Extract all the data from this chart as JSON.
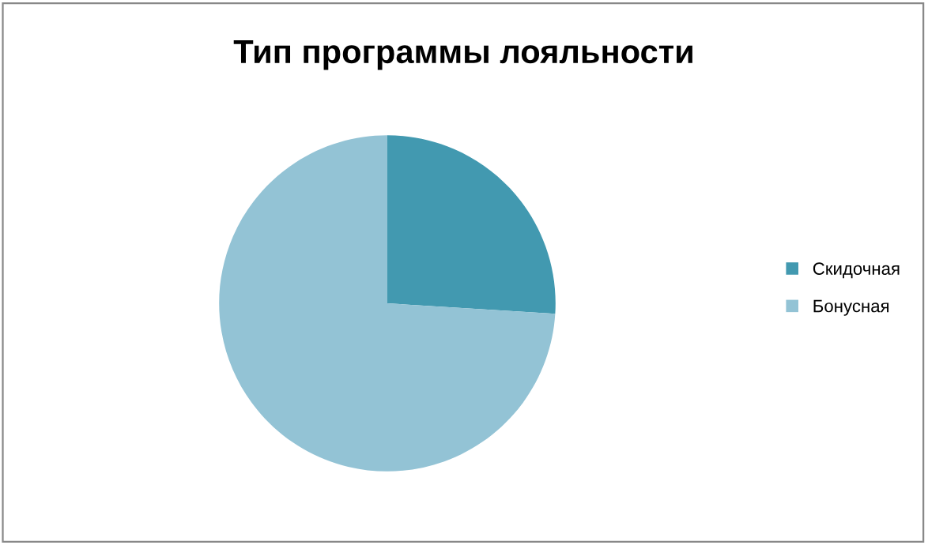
{
  "chart_data": {
    "type": "pie",
    "title": "Тип программы лояльности",
    "categories": [
      "Скидочная",
      "Бонусная"
    ],
    "values": [
      26,
      74
    ],
    "colors": [
      "#4299b0",
      "#93c3d5"
    ],
    "legend": "right"
  }
}
